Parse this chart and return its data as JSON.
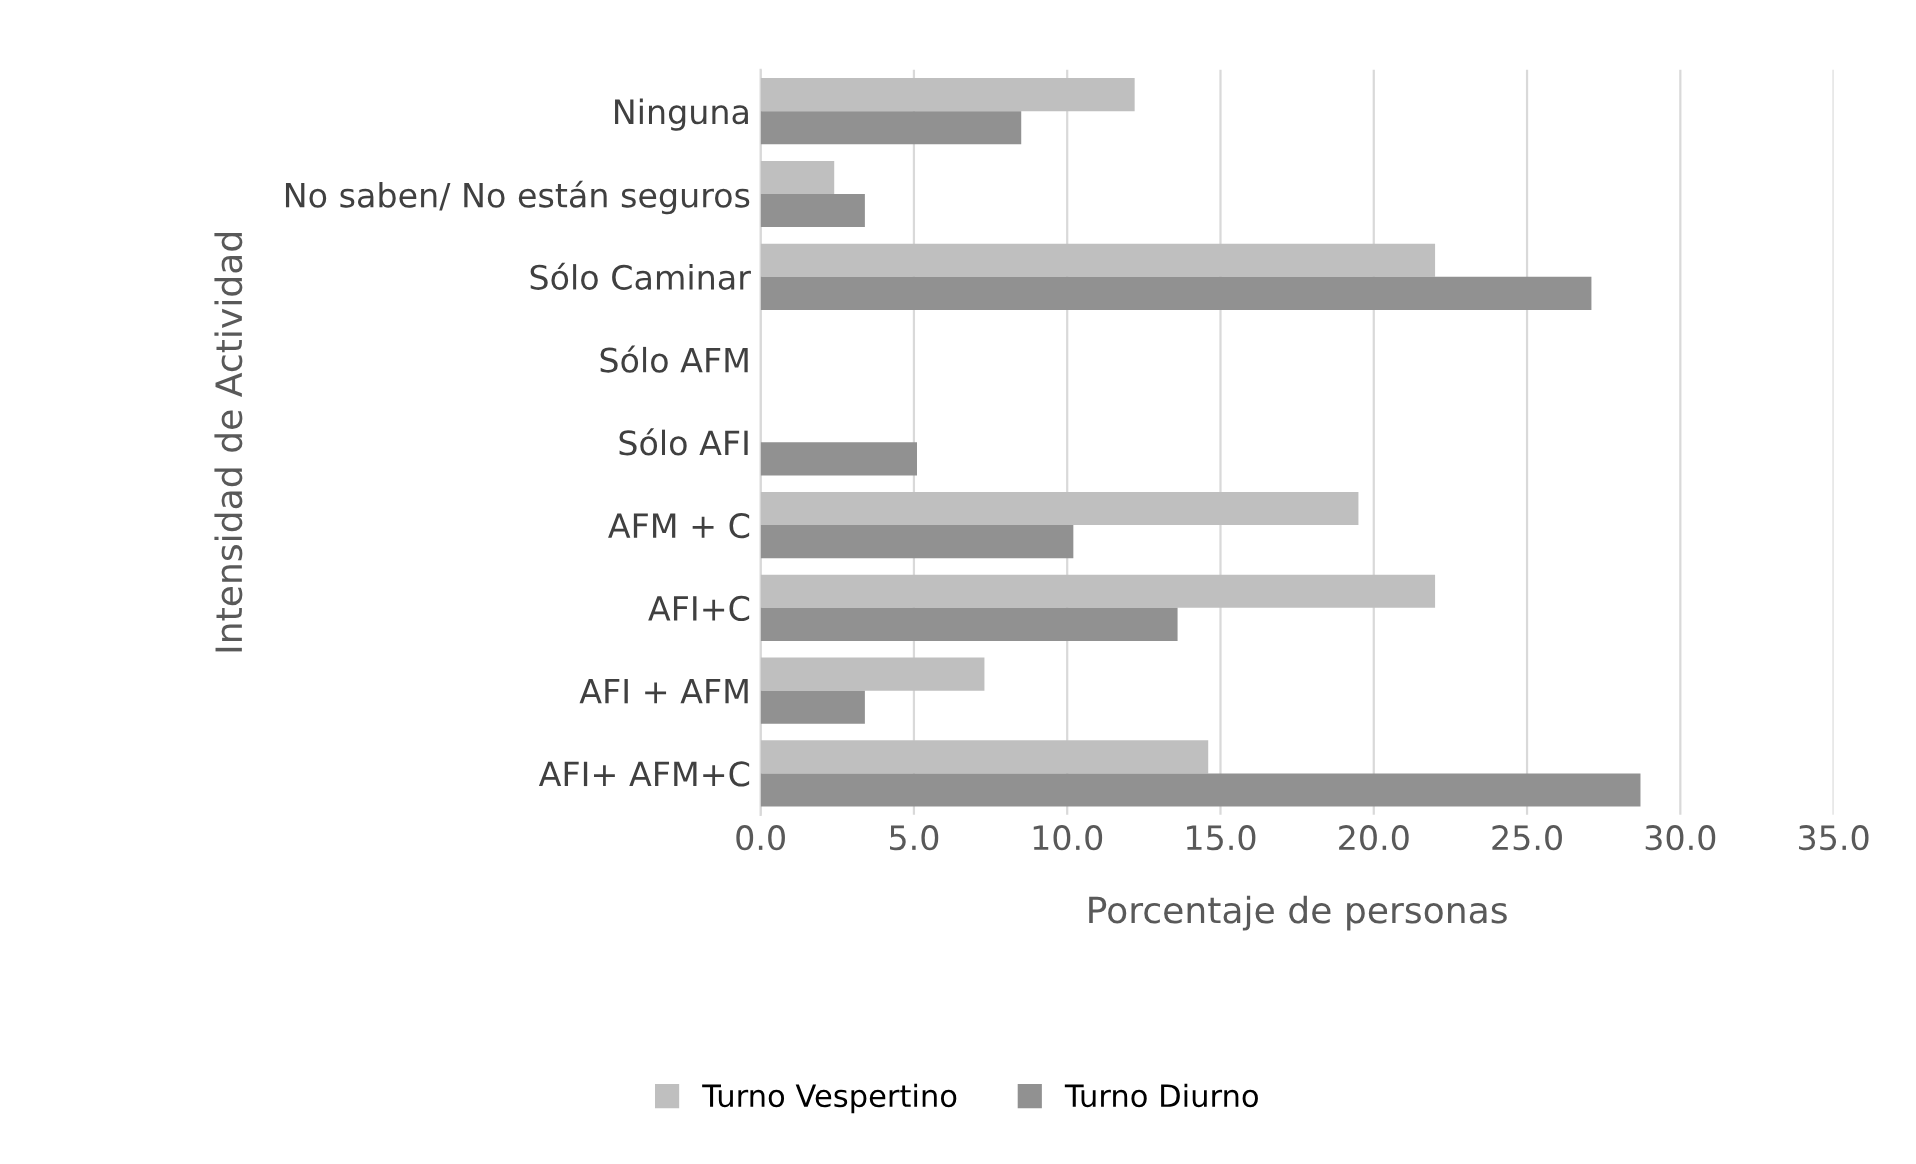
{
  "chart_data": {
    "type": "bar",
    "orientation": "horizontal",
    "xlabel": "Porcentaje de personas",
    "ylabel": "Intensidad de Actividad",
    "categories": [
      "Ninguna",
      "No saben/ No están seguros",
      "Sólo Caminar",
      "Sólo AFM",
      "Sólo AFI",
      "AFM + C",
      "AFI+C",
      "AFI + AFM",
      "AFI+ AFM+C"
    ],
    "series": [
      {
        "name": "Turno Vespertino",
        "color": "#bfbfbf",
        "values": [
          12.2,
          2.4,
          22.0,
          0,
          0,
          19.5,
          22.0,
          7.3,
          14.6
        ]
      },
      {
        "name": "Turno Diurno",
        "color": "#919191",
        "values": [
          8.5,
          3.4,
          27.1,
          0,
          5.1,
          10.2,
          13.6,
          3.4,
          28.7
        ]
      }
    ],
    "xlim": [
      0,
      35
    ],
    "xticks": [
      {
        "value": 0,
        "label": "0.0"
      },
      {
        "value": 5,
        "label": "5.0"
      },
      {
        "value": 10,
        "label": "10.0"
      },
      {
        "value": 15,
        "label": "15.0"
      },
      {
        "value": 20,
        "label": "20.0"
      },
      {
        "value": 25,
        "label": "25.0"
      },
      {
        "value": 30,
        "label": "30.0"
      },
      {
        "value": 35,
        "label": "35.0"
      }
    ],
    "grid": "x",
    "legend": "bottom"
  }
}
